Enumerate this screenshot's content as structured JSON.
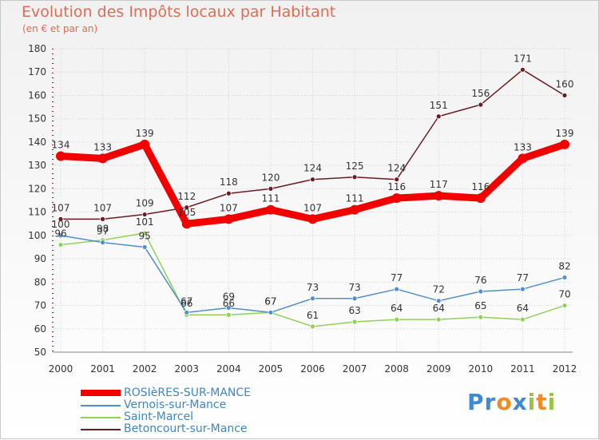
{
  "title": "Evolution des Impôts locaux par Habitant",
  "subtitle": "(en € et par an)",
  "logo": {
    "text": "Proxiti"
  },
  "chart_data": {
    "type": "line",
    "title": "Evolution des Impôts locaux par Habitant",
    "ylabel": "(en € et par an)",
    "xlabel": "",
    "categories": [
      "2000",
      "2001",
      "2002",
      "2003",
      "2004",
      "2005",
      "2006",
      "2007",
      "2008",
      "2009",
      "2010",
      "2011",
      "2012"
    ],
    "ylim": [
      50,
      180
    ],
    "yticks": [
      50,
      60,
      70,
      80,
      90,
      100,
      110,
      120,
      130,
      140,
      150,
      160,
      170,
      180
    ],
    "grid": true,
    "legend_position": "bottom-left",
    "series": [
      {
        "name": "ROSIèRES-SUR-MANCE",
        "color": "#f20000",
        "emphasis": true,
        "values": [
          134,
          133,
          139,
          105,
          107,
          111,
          107,
          111,
          116,
          117,
          116,
          133,
          139
        ],
        "labels": [
          "134",
          "133",
          "139",
          "105",
          "107",
          "111",
          "107",
          "111",
          "116",
          "117",
          "116",
          "133",
          "139"
        ]
      },
      {
        "name": "Vernois-sur-Mance",
        "color": "#4f8fcb",
        "values": [
          100,
          97,
          95,
          67,
          69,
          67,
          73,
          73,
          77,
          72,
          76,
          77,
          82
        ],
        "labels": [
          "100",
          "97",
          "95",
          "67",
          "69",
          "67",
          "73",
          "73",
          "77",
          "72",
          "76",
          "77",
          "82"
        ]
      },
      {
        "name": "Saint-Marcel",
        "color": "#8fd257",
        "values": [
          96,
          98,
          101,
          66,
          66,
          67,
          61,
          63,
          64,
          64,
          65,
          64,
          70
        ],
        "labels": [
          "96",
          "98",
          "101",
          "66",
          "66",
          "67",
          "61",
          "63",
          "64",
          "64",
          "65",
          "64",
          "70"
        ]
      },
      {
        "name": "Betoncourt-sur-Mance",
        "color": "#6b1c23",
        "values": [
          107,
          107,
          109,
          112,
          118,
          120,
          124,
          125,
          124,
          151,
          156,
          171,
          160
        ],
        "labels": [
          "107",
          "107",
          "109",
          "112",
          "118",
          "120",
          "124",
          "125",
          "124",
          "151",
          "156",
          "171",
          "160"
        ]
      }
    ]
  }
}
